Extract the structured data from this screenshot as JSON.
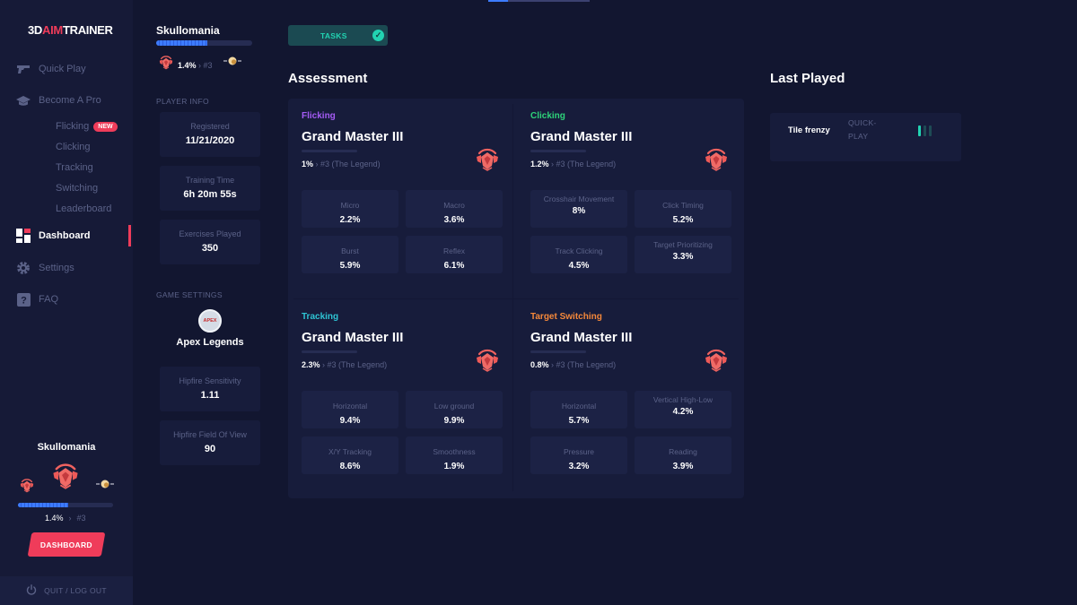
{
  "brand": {
    "logo_left": "3D",
    "logo_mid": "AIM",
    "logo_right": "TRAINER"
  },
  "nav": {
    "quick_play": "Quick Play",
    "become_pro": "Become A Pro",
    "sub": [
      "Flicking",
      "Clicking",
      "Tracking",
      "Switching",
      "Leaderboard"
    ],
    "new_badge": "NEW",
    "dashboard": "Dashboard",
    "settings": "Settings",
    "faq": "FAQ"
  },
  "sidebar_user": {
    "name": "Skullomania",
    "percent": "1.4%",
    "rank_no": "#3",
    "progress": 0.53,
    "button": "DASHBOARD",
    "logout": "QUIT / LOG OUT"
  },
  "player": {
    "name": "Skullomania",
    "progress": 0.53,
    "percent": "1.4%",
    "rank_no": "#3",
    "info_label": "PLAYER INFO",
    "registered_label": "Registered",
    "registered": "11/21/2020",
    "training_label": "Training Time",
    "training": "6h 20m 55s",
    "exercises_label": "Exercises Played",
    "exercises": "350",
    "game_settings_label": "GAME SETTINGS",
    "game_logo_text": "APEX",
    "game": "Apex Legends",
    "hipfire_sens_label": "Hipfire Sensitivity",
    "hipfire_sens": "1.11",
    "hipfire_fov_label": "Hipfire Field Of View",
    "hipfire_fov": "90"
  },
  "tasks": {
    "label": "TASKS"
  },
  "assessment": {
    "title": "Assessment",
    "categories": [
      {
        "name": "Flicking",
        "color": "#a55cf5",
        "rank": "Grand Master III",
        "percent": "1%",
        "rank_detail": "#3 (The Legend)",
        "stats": [
          {
            "label": "Micro",
            "value": "2.2%"
          },
          {
            "label": "Macro",
            "value": "3.6%"
          },
          {
            "label": "Burst",
            "value": "5.9%"
          },
          {
            "label": "Reflex",
            "value": "6.1%"
          }
        ]
      },
      {
        "name": "Clicking",
        "color": "#2ed47a",
        "rank": "Grand Master III",
        "percent": "1.2%",
        "rank_detail": "#3 (The Legend)",
        "stats": [
          {
            "label": "Crosshair Movement",
            "value": "8%"
          },
          {
            "label": "Click Timing",
            "value": "5.2%"
          },
          {
            "label": "Track Clicking",
            "value": "4.5%"
          },
          {
            "label": "Target Prioritizing",
            "value": "3.3%"
          }
        ]
      },
      {
        "name": "Tracking",
        "color": "#2ec4d4",
        "rank": "Grand Master III",
        "percent": "2.3%",
        "rank_detail": "#3 (The Legend)",
        "stats": [
          {
            "label": "Horizontal",
            "value": "9.4%"
          },
          {
            "label": "Low ground",
            "value": "9.9%"
          },
          {
            "label": "X/Y Tracking",
            "value": "8.6%"
          },
          {
            "label": "Smoothness",
            "value": "1.9%"
          }
        ]
      },
      {
        "name": "Target Switching",
        "color": "#f5883a",
        "rank": "Grand Master III",
        "percent": "0.8%",
        "rank_detail": "#3 (The Legend)",
        "stats": [
          {
            "label": "Horizontal",
            "value": "5.7%"
          },
          {
            "label": "Vertical High-Low",
            "value": "4.2%"
          },
          {
            "label": "Pressure",
            "value": "3.2%"
          },
          {
            "label": "Reading",
            "value": "3.9%"
          }
        ]
      }
    ]
  },
  "last_played": {
    "title": "Last Played",
    "item": {
      "name": "Tile frenzy",
      "mode_line1": "QUICK-",
      "mode_line2": "PLAY"
    }
  },
  "colors": {
    "accent": "#ef3c5a",
    "teal": "#22d3b2",
    "bg": "#121630",
    "card": "#171c3b",
    "muted": "#5b6288"
  }
}
